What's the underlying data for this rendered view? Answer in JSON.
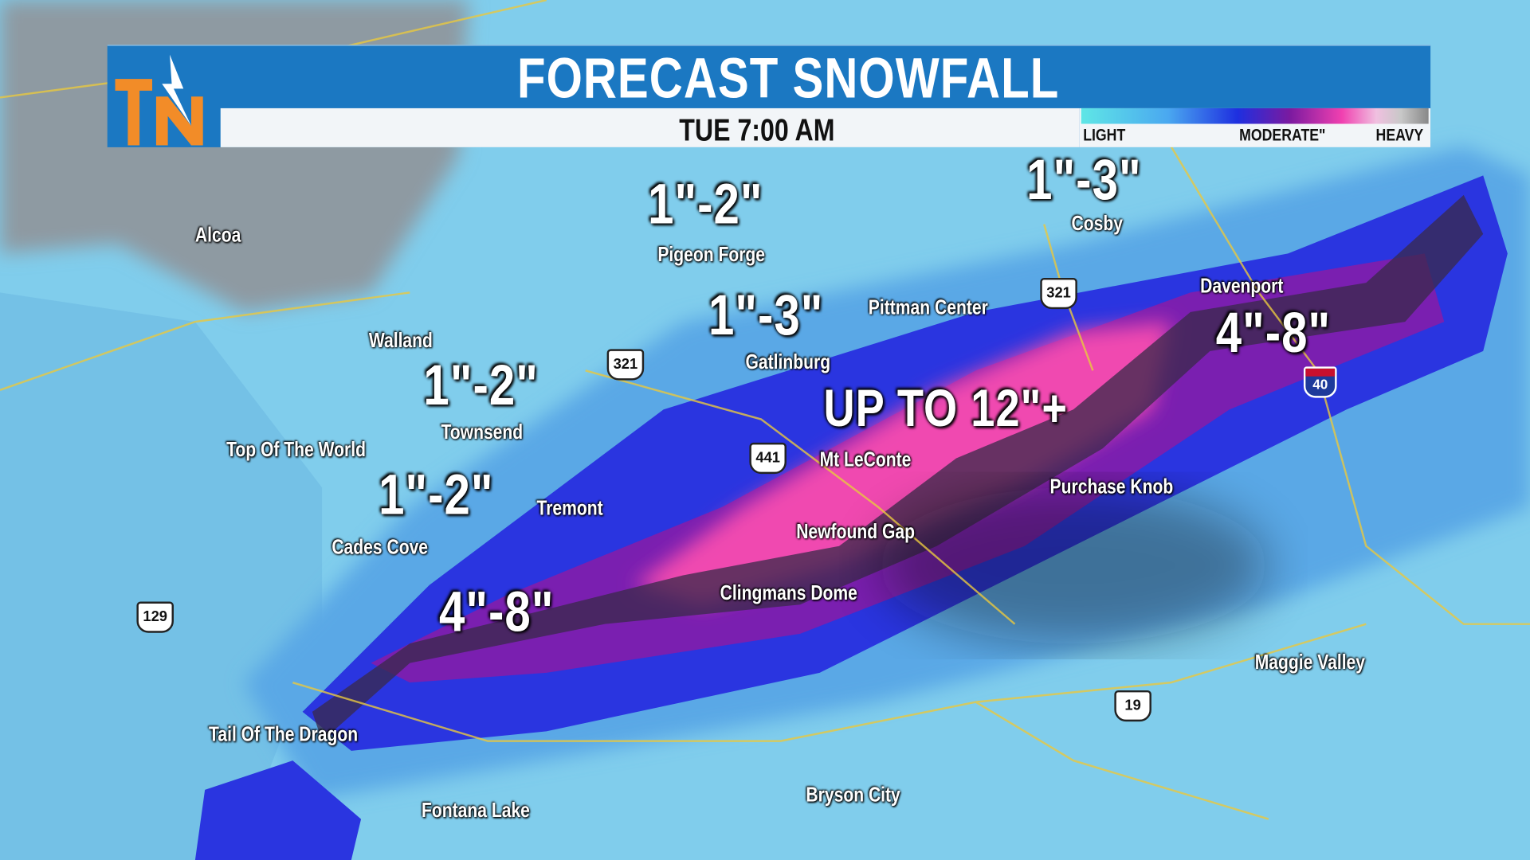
{
  "header": {
    "title": "FORECAST SNOWFALL",
    "time": "TUE 7:00 AM",
    "logo": "TN"
  },
  "legend": {
    "light": "LIGHT",
    "moderate": "MODERATE\"",
    "heavy": "HEAVY"
  },
  "colors": {
    "header": "#1b78c2",
    "logo": "#f28c28",
    "light_snow": "#7fcdeb",
    "moderate": "#1e2fe0",
    "heavy": "#f040b0"
  },
  "amounts": [
    "1\"-2\"",
    "1\"-3\"",
    "1\"-3\"",
    "1\"-2\"",
    "1\"-2\"",
    "UP TO 12\"+",
    "4\"-8\"",
    "4\"-8\""
  ],
  "towns": [
    "Alcoa",
    "Pigeon Forge",
    "Cosby",
    "Pittman Center",
    "Gatlinburg",
    "Davenport",
    "Walland",
    "Townsend",
    "Top Of The World",
    "Mt LeConte",
    "Tremont",
    "Purchase Knob",
    "Cades Cove",
    "Newfound Gap",
    "Clingmans Dome",
    "Maggie Valley",
    "Tail Of The Dragon",
    "Bryson City",
    "Fontana Lake"
  ],
  "routes": [
    "321",
    "321",
    "441",
    "129",
    "19",
    "40"
  ]
}
